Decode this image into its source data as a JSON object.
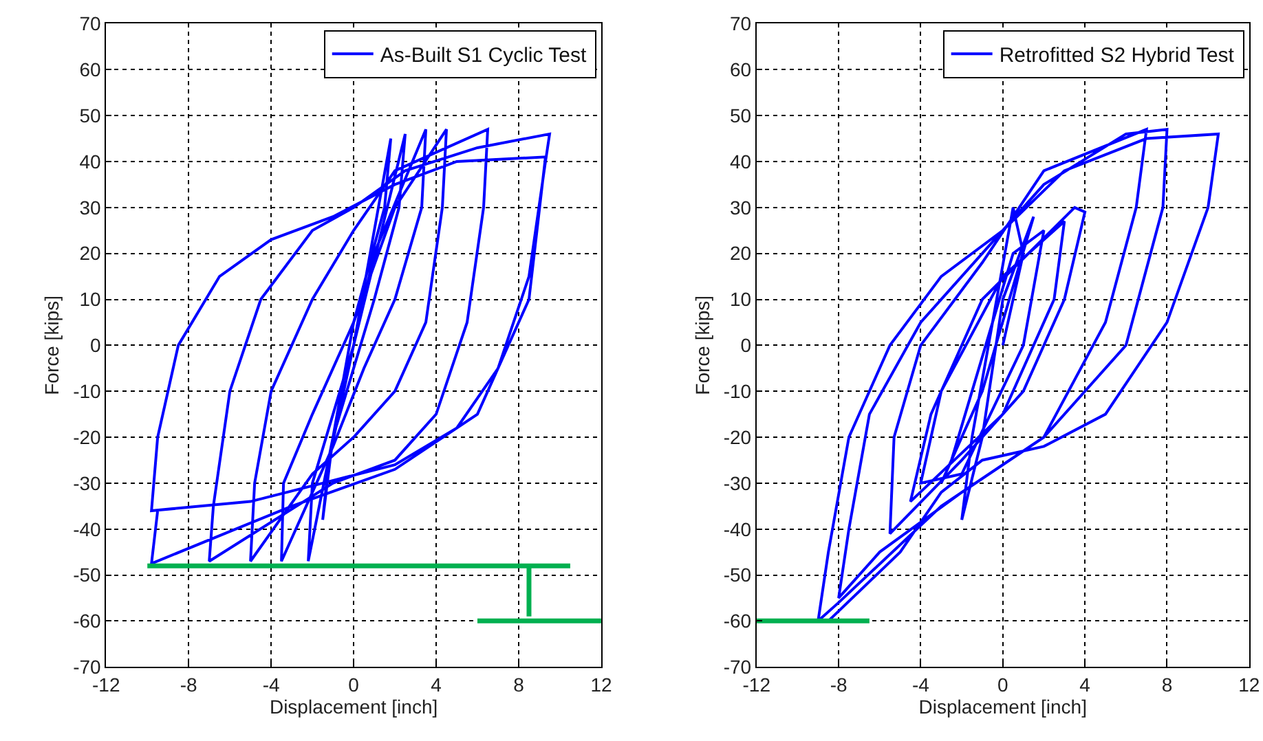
{
  "chart_data": [
    {
      "type": "line",
      "xlabel": "Displacement [inch]",
      "ylabel": "Force [kips]",
      "xlim": [
        -12,
        12
      ],
      "ylim": [
        -70,
        70
      ],
      "xticks": [
        -12,
        -8,
        -4,
        0,
        4,
        8,
        12
      ],
      "yticks": [
        -70,
        -60,
        -50,
        -40,
        -30,
        -20,
        -10,
        0,
        10,
        20,
        30,
        40,
        50,
        60,
        70
      ],
      "grid": true,
      "legend": "top right",
      "series": [
        {
          "name": "As-Built S1 Cyclic Test",
          "color": "#0000ff",
          "x": [
            0,
            1.2,
            1.8,
            1.5,
            0,
            -1,
            -1.5,
            -1.2,
            0,
            2.5,
            2.2,
            1,
            -1,
            -2.2,
            -2,
            0,
            1,
            3.5,
            3.3,
            2,
            0.5,
            -1,
            -3.5,
            -3.4,
            -2,
            0,
            2,
            4.5,
            4.3,
            3.5,
            2,
            0,
            -2,
            -5,
            -4.8,
            -4,
            -2,
            0,
            2,
            6.5,
            6.3,
            5.5,
            4,
            2,
            -1,
            -7,
            -6.8,
            -6,
            -4.5,
            -2,
            0,
            2.5,
            6,
            9.5,
            9.3,
            8.5,
            7,
            5,
            2,
            -1.5,
            -5,
            -9.8,
            -9.5,
            -8.5,
            -6.5,
            -4,
            -1,
            2,
            5,
            9.3,
            8.5,
            6,
            2,
            -3,
            -9.8,
            -9.5
          ],
          "values": [
            0,
            30,
            45,
            30,
            5,
            -20,
            -38,
            -25,
            0,
            46,
            30,
            10,
            -20,
            -47,
            -30,
            0,
            20,
            47,
            30,
            10,
            -5,
            -22,
            -47,
            -30,
            -15,
            5,
            30,
            47,
            30,
            5,
            -10,
            -20,
            -28,
            -47,
            -30,
            -10,
            10,
            25,
            38,
            47,
            30,
            5,
            -15,
            -25,
            -30,
            -47,
            -35,
            -10,
            10,
            25,
            30,
            38,
            43,
            46,
            40,
            15,
            -5,
            -18,
            -26,
            -30,
            -34,
            -36,
            -20,
            0,
            15,
            23,
            28,
            35,
            40,
            41,
            10,
            -15,
            -27,
            -35,
            -47.5,
            -36
          ]
        },
        {
          "color": "#00b050",
          "x": [
            -10,
            10.5
          ],
          "values": [
            -48,
            -48
          ]
        },
        {
          "color": "#00b050",
          "x": [
            8.5,
            8.5
          ],
          "values": [
            -48,
            -59
          ]
        },
        {
          "color": "#00b050",
          "x": [
            6,
            12
          ],
          "values": [
            -60,
            -60
          ]
        }
      ]
    },
    {
      "type": "line",
      "xlabel": "Displacement [inch]",
      "ylabel": "Force [kips]",
      "xlim": [
        -12,
        12
      ],
      "ylim": [
        -70,
        70
      ],
      "xticks": [
        -12,
        -8,
        -4,
        0,
        4,
        8,
        12
      ],
      "yticks": [
        -70,
        -60,
        -50,
        -40,
        -30,
        -20,
        -10,
        0,
        10,
        20,
        30,
        40,
        50,
        60,
        70
      ],
      "grid": true,
      "legend": "top right",
      "series": [
        {
          "name": "Retrofitted S2 Hybrid Test",
          "color": "#0000ff",
          "x": [
            0,
            1,
            0.5,
            -0.5,
            -1.5,
            -2,
            -1,
            0,
            1.5,
            -1,
            -3,
            -2.5,
            0.5,
            2,
            1,
            -2,
            -4,
            -3,
            0,
            3,
            2.5,
            0,
            -4.5,
            -3.5,
            -1,
            3.5,
            4,
            3,
            1,
            -2,
            -5.5,
            -5.3,
            -4,
            -1,
            2,
            7,
            6.5,
            5,
            2,
            -2,
            -6,
            -8,
            -7.5,
            -6.5,
            -4,
            -1,
            2,
            6,
            8,
            7.8,
            6,
            2,
            -3,
            -8,
            -9,
            -8.5,
            -7.5,
            -5.5,
            -3,
            0,
            3,
            7,
            10.5,
            10,
            8,
            5,
            2,
            -1,
            -3,
            -5,
            -8.5
          ],
          "values": [
            0,
            20,
            30,
            5,
            -20,
            -38,
            -20,
            10,
            28,
            -10,
            -30,
            -25,
            20,
            25,
            0,
            -28,
            -30,
            -10,
            15,
            27,
            10,
            -15,
            -34,
            -15,
            10,
            30,
            29,
            10,
            -10,
            -25,
            -41,
            -20,
            0,
            18,
            38,
            47,
            30,
            5,
            -20,
            -32,
            -45,
            -55,
            -40,
            -15,
            5,
            20,
            35,
            46,
            47,
            30,
            0,
            -20,
            -35,
            -56,
            -60,
            -45,
            -20,
            0,
            15,
            25,
            38,
            45,
            46,
            30,
            5,
            -15,
            -22,
            -25,
            -32,
            -45,
            -60
          ]
        },
        {
          "color": "#00b050",
          "x": [
            -12,
            -6.5
          ],
          "values": [
            -60,
            -60
          ]
        }
      ]
    }
  ]
}
